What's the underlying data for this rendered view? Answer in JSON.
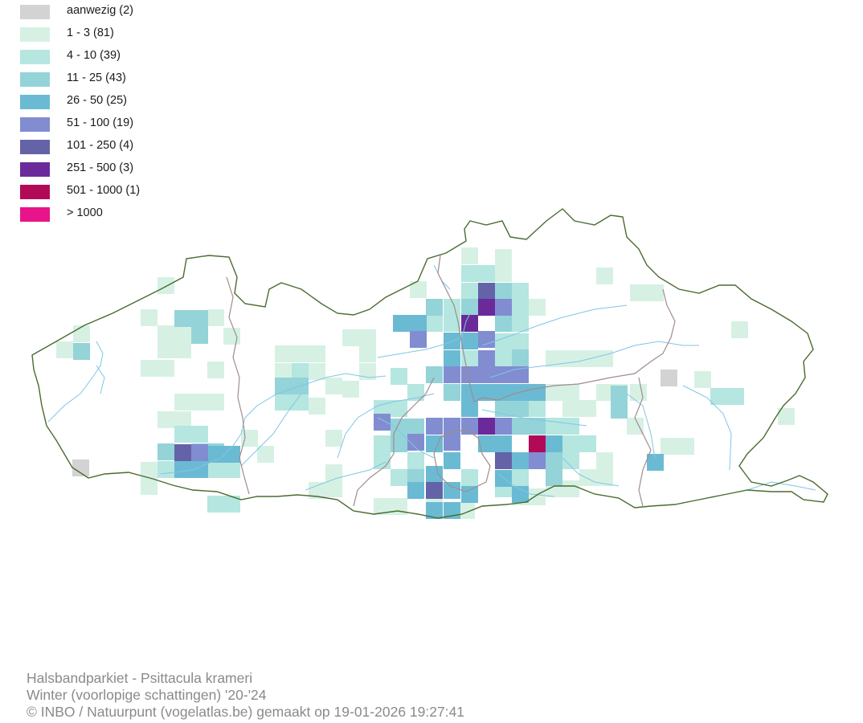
{
  "legend": {
    "items": [
      {
        "label": "aanwezig (2)",
        "color": "#d3d3d3"
      },
      {
        "label": "1 - 3 (81)",
        "color": "#d6f1e4"
      },
      {
        "label": "4 - 10 (39)",
        "color": "#b5e6e0"
      },
      {
        "label": "11 - 25 (43)",
        "color": "#94d3d8"
      },
      {
        "label": "26 - 50 (25)",
        "color": "#6bbad3"
      },
      {
        "label": "51 - 100 (19)",
        "color": "#818dd0"
      },
      {
        "label": "101 - 250 (4)",
        "color": "#6463a8"
      },
      {
        "label": "251 - 500 (3)",
        "color": "#6a2a9a"
      },
      {
        "label": "501 - 1000 (1)",
        "color": "#b30a58"
      },
      {
        "label": "> 1000",
        "color": "#e8148a"
      }
    ]
  },
  "map": {
    "outline_color": "#4a6b30",
    "river_color": "#7ec6e6",
    "province_border_color": "#a08c8c"
  },
  "credits": {
    "line1": "Halsbandparkiet - Psittacula krameri",
    "line2": "Winter (voorlopige schattingen) '20-'24",
    "line3": "© INBO / Natuurpunt (vogelatlas.be) gemaakt op 19-01-2026 19:27:41"
  }
}
